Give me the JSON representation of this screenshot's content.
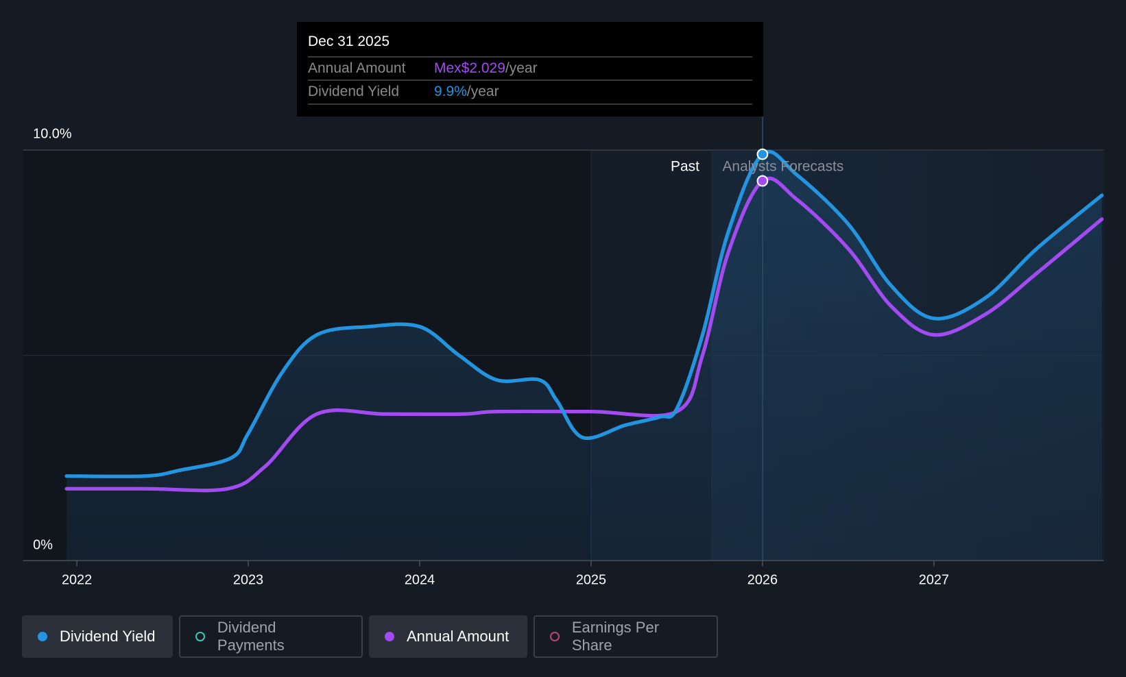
{
  "tooltip": {
    "date": "Dec 31 2025",
    "rows": [
      {
        "label": "Annual Amount",
        "value": "Mex$2.029",
        "unit": "/year",
        "color": "#a24bf0"
      },
      {
        "label": "Dividend Yield",
        "value": "9.9%",
        "unit": "/year",
        "color": "#2394e0"
      }
    ]
  },
  "legend": [
    {
      "label": "Dividend Yield",
      "color": "#2394e0",
      "active": true
    },
    {
      "label": "Dividend Payments",
      "color": "#3cc8b4",
      "active": false
    },
    {
      "label": "Annual Amount",
      "color": "#a24bf0",
      "active": true
    },
    {
      "label": "Earnings Per Share",
      "color": "#c2417a",
      "active": false
    }
  ],
  "chart_data": {
    "type": "line",
    "y_tick_labels": [
      "10.0%",
      "0%"
    ],
    "ylim": [
      0,
      10
    ],
    "xlim": [
      2021.68,
      2027.98
    ],
    "x_ticks": [
      2022,
      2023,
      2024,
      2025,
      2026,
      2027
    ],
    "x_tick_labels": [
      "2022",
      "2023",
      "2024",
      "2025",
      "2026",
      "2027"
    ],
    "region_labels": {
      "past": "Past",
      "forecast": "Analysts Forecasts"
    },
    "forecast_start": 2025.7,
    "highlight_x": 2026.0,
    "series": [
      {
        "name": "Dividend Yield",
        "color": "#2394e0",
        "x": [
          2021.94,
          2022.4,
          2022.6,
          2022.9,
          2023.0,
          2023.2,
          2023.4,
          2023.7,
          2024.0,
          2024.23,
          2024.45,
          2024.7,
          2024.8,
          2024.95,
          2025.2,
          2025.4,
          2025.5,
          2025.65,
          2025.8,
          2026.0,
          2026.2,
          2026.5,
          2026.75,
          2027.0,
          2027.3,
          2027.6,
          2027.98
        ],
        "y": [
          2.06,
          2.06,
          2.2,
          2.5,
          3.1,
          4.6,
          5.5,
          5.7,
          5.7,
          5.0,
          4.4,
          4.4,
          3.9,
          3.0,
          3.3,
          3.5,
          3.7,
          5.5,
          8.0,
          9.9,
          9.4,
          8.2,
          6.7,
          5.9,
          6.4,
          7.6,
          8.9
        ]
      },
      {
        "name": "Annual Amount",
        "color": "#a24bf0",
        "x": [
          2021.94,
          2022.4,
          2022.88,
          2023.1,
          2023.4,
          2023.8,
          2024.25,
          2024.45,
          2025.0,
          2025.5,
          2025.65,
          2025.8,
          2026.0,
          2026.2,
          2026.5,
          2026.75,
          2027.0,
          2027.3,
          2027.6,
          2027.98
        ],
        "y": [
          1.75,
          1.75,
          1.75,
          2.3,
          3.57,
          3.57,
          3.57,
          3.63,
          3.63,
          3.63,
          5.0,
          7.5,
          9.25,
          8.8,
          7.6,
          6.2,
          5.5,
          6.0,
          7.0,
          8.32
        ]
      }
    ]
  }
}
